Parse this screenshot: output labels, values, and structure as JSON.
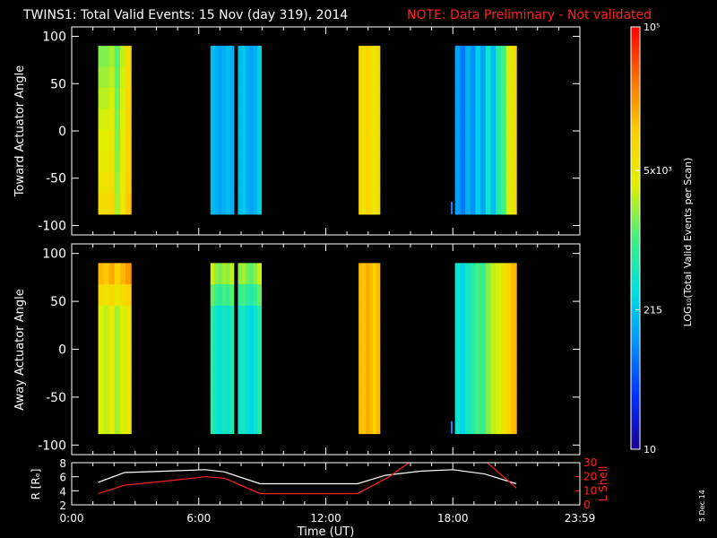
{
  "page": {
    "title": "TWINS1: Total Valid Events: 15 Nov (day 319), 2014",
    "note": "NOTE: Data Preliminary - Not validated",
    "date_stamp": "5 Dec 14"
  },
  "colors": {
    "background": "#000000",
    "axis": "#ffffff",
    "note": "#ff2020",
    "ephemeris_r": "#ffffff",
    "ephemeris_l": "#ff2020"
  },
  "chart_data": [
    {
      "type": "heatmap",
      "id": "toward",
      "ylabel": "Toward Actuator Angle",
      "ylim": [
        -110,
        110
      ],
      "yticks": [
        100,
        50,
        0,
        -50,
        -100
      ],
      "xlim": [
        0,
        24
      ],
      "xticks": [
        0,
        6,
        12,
        18,
        24
      ],
      "xtick_labels": [
        "",
        "",
        "",
        "",
        ""
      ],
      "angle_range": [
        -88,
        90
      ],
      "scans": [
        {
          "start": 1.25,
          "end": 2.8,
          "levels": [
            0.55,
            0.55,
            0.58,
            0.52,
            0.6,
            0.7
          ],
          "gradient": "lower-yellow"
        },
        {
          "start": 6.55,
          "end": 7.65,
          "levels": [
            0.32,
            0.3,
            0.28,
            0.3,
            0.32,
            0.3
          ],
          "gradient": "none"
        },
        {
          "start": 7.85,
          "end": 8.95,
          "levels": [
            0.32,
            0.34,
            0.3,
            0.28,
            0.3,
            0.35
          ],
          "gradient": "none"
        },
        {
          "start": 13.55,
          "end": 14.55,
          "levels": [
            0.72,
            0.68,
            0.74,
            0.7,
            0.66,
            0.7
          ],
          "gradient": "none"
        },
        {
          "start": 18.1,
          "end": 21.0,
          "levels": [
            0.28,
            0.22,
            0.3,
            0.25,
            0.35,
            0.28,
            0.4,
            0.32,
            0.45,
            0.5,
            0.62,
            0.7
          ],
          "gradient": "none"
        }
      ]
    },
    {
      "type": "heatmap",
      "id": "away",
      "ylabel": "Away Actuator Angle",
      "ylim": [
        -110,
        110
      ],
      "yticks": [
        100,
        50,
        0,
        -50,
        -100
      ],
      "xlim": [
        0,
        24
      ],
      "xticks": [
        0,
        6,
        12,
        18,
        24
      ],
      "xtick_labels": [
        "",
        "",
        "",
        "",
        ""
      ],
      "angle_range": [
        -88,
        90
      ],
      "scans": [
        {
          "start": 1.25,
          "end": 2.8,
          "levels": [
            0.62,
            0.6,
            0.64,
            0.58,
            0.62,
            0.66
          ],
          "gradient": "upper-yellow"
        },
        {
          "start": 6.55,
          "end": 7.65,
          "levels": [
            0.45,
            0.4,
            0.38,
            0.42,
            0.4,
            0.44
          ],
          "gradient": "upper-yellow"
        },
        {
          "start": 7.85,
          "end": 8.95,
          "levels": [
            0.4,
            0.42,
            0.38,
            0.36,
            0.4,
            0.45
          ],
          "gradient": "upper-yellow"
        },
        {
          "start": 13.55,
          "end": 14.55,
          "levels": [
            0.78,
            0.76,
            0.8,
            0.78,
            0.74,
            0.78
          ],
          "gradient": "none"
        },
        {
          "start": 18.1,
          "end": 21.0,
          "levels": [
            0.4,
            0.36,
            0.42,
            0.45,
            0.5,
            0.48,
            0.55,
            0.6,
            0.62,
            0.68,
            0.74,
            0.78
          ],
          "gradient": "none"
        }
      ]
    },
    {
      "type": "line",
      "id": "ephemeris",
      "ylabel": "R [Rₑ]",
      "y2label": "L Shell",
      "xlabel": "Time (UT)",
      "xlim": [
        0,
        24
      ],
      "xticks": [
        0,
        6,
        12,
        18,
        24
      ],
      "xtick_labels": [
        "0:00",
        "6:00",
        "12:00",
        "18:00",
        "23:59"
      ],
      "ylim": [
        2,
        8
      ],
      "yticks": [
        8,
        6,
        4,
        2
      ],
      "y2lim": [
        0,
        30
      ],
      "y2ticks": [
        30,
        20,
        10,
        0
      ],
      "series": [
        {
          "axis": "left",
          "x": [
            1.25,
            2.5,
            4.5,
            6.3,
            7.2,
            8.9,
            10.5,
            12.0,
            13.5,
            14.8,
            16.5,
            18.0,
            19.5,
            21.0
          ],
          "y": [
            5.2,
            6.6,
            6.8,
            7.0,
            6.7,
            5.0,
            5.0,
            5.0,
            5.0,
            6.2,
            6.8,
            7.0,
            6.4,
            5.0
          ]
        },
        {
          "axis": "right",
          "x": [
            1.25,
            2.5,
            4.5,
            6.3,
            7.2,
            8.9,
            10.5,
            12.0,
            13.5,
            15.0,
            16.2,
            19.4,
            21.0
          ],
          "y": [
            8,
            14,
            17,
            20,
            19,
            8,
            8,
            8,
            8,
            20,
            33,
            33,
            12
          ]
        }
      ]
    }
  ],
  "colorbar": {
    "label": "LOG₁₀(Total Valid Events per Scan)",
    "ticks": [
      {
        "label": "10⁵",
        "frac": 1.0
      },
      {
        "label": "5x10³",
        "frac": 0.66
      },
      {
        "label": "215",
        "frac": 0.33
      },
      {
        "label": "10",
        "frac": 0.0
      }
    ],
    "stops": [
      "#1a0090",
      "#0030ff",
      "#0090ff",
      "#00e0e0",
      "#40f080",
      "#e0f000",
      "#ffd000",
      "#ff7000",
      "#ff0000"
    ]
  }
}
